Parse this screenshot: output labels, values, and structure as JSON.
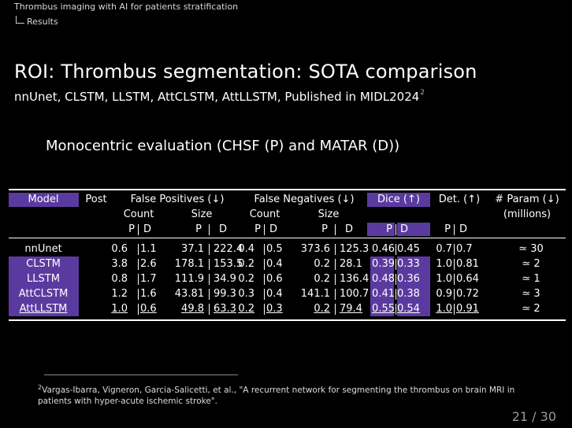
{
  "breadcrumb": {
    "section": "Thrombus imaging with AI for patients stratification",
    "subsection": "Results"
  },
  "title": "ROI: Thrombus segmentation: SOTA comparison",
  "subtitle": "nnUnet, CLSTM, LLSTM, AttCLSTM, AttLLSTM, Published in MIDL2024",
  "subtitle_ref": "2",
  "heading": "Monocentric evaluation (CHSF (P) and MATAR (D))",
  "table": {
    "h_model": "Model",
    "h_post": "Post",
    "h_fp": "False Positives (↓)",
    "h_fn": "False Negatives (↓)",
    "h_dice": "Dice (↑)",
    "h_det": "Det. (↑)",
    "h_param": "# Param (↓)",
    "h_millions": "(millions)",
    "h_count": "Count",
    "h_size": "Size",
    "h_p": "P",
    "h_d": "D",
    "rows": [
      {
        "model": "nnUnet",
        "fpc_p": "0.6",
        "fpc_d": "1.1",
        "fps_p": "37.1",
        "fps_d": "222.4",
        "fnc_p": "0.4",
        "fnc_d": "0.5",
        "fns_p": "373.6",
        "fns_d": "125.3",
        "dice_p": "0.46",
        "dice_d": "0.45",
        "det_p": "0.7",
        "det_d": "0.7",
        "param": "≃ 30"
      },
      {
        "model": "CLSTM",
        "fpc_p": "3.8",
        "fpc_d": "2.6",
        "fps_p": "178.1",
        "fps_d": "153.5",
        "fnc_p": "0.2",
        "fnc_d": "0.4",
        "fns_p": "0.2",
        "fns_d": "28.1",
        "dice_p": "0.39",
        "dice_d": "0.33",
        "det_p": "1.0",
        "det_d": "0.81",
        "param": "≃ 2"
      },
      {
        "model": "LLSTM",
        "fpc_p": "0.8",
        "fpc_d": "1.7",
        "fps_p": "111.9",
        "fps_d": "34.9",
        "fnc_p": "0.2",
        "fnc_d": "0.6",
        "fns_p": "0.2",
        "fns_d": "136.4",
        "dice_p": "0.48",
        "dice_d": "0.36",
        "det_p": "1.0",
        "det_d": "0.64",
        "param": "≃ 1"
      },
      {
        "model": "AttCLSTM",
        "fpc_p": "1.2",
        "fpc_d": "1.6",
        "fps_p": "43.81",
        "fps_d": "99.3",
        "fnc_p": "0.3",
        "fnc_d": "0.4",
        "fns_p": "141.1",
        "fns_d": "100.7",
        "dice_p": "0.41",
        "dice_d": "0.38",
        "det_p": "0.9",
        "det_d": "0.72",
        "param": "≃ 3"
      },
      {
        "model": "AttLLSTM",
        "fpc_p": "1.0",
        "fpc_d": "0.6",
        "fps_p": "49.8",
        "fps_d": "63.3",
        "fnc_p": "0.2",
        "fnc_d": "0.3",
        "fns_p": "0.2",
        "fns_d": "79.4",
        "dice_p": "0.55",
        "dice_d": "0.54",
        "det_p": "1.0",
        "det_d": "0.91",
        "param": "≃ 2"
      }
    ]
  },
  "footnote": {
    "marker": "2",
    "text": "Vargas-Ibarra, Vigneron, Garcia-Salicetti, et al., \"A recurrent network for segmenting the thrombus on brain MRI in patients with hyper-acute ischemic stroke\"."
  },
  "page_number": "21 / 30"
}
